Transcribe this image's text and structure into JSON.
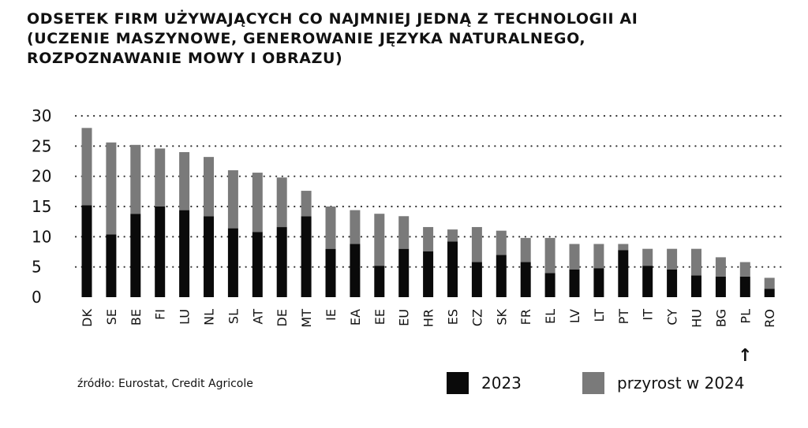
{
  "title_lines": [
    "ODSETEK FIRM UŻYWAJĄCYCH CO NAJMNIEJ JEDNĄ Z TECHNOLOGII AI",
    "(UCZENIE MASZYNOWE, GENEROWANIE JĘZYKA NATURALNEGO,",
    "ROZPOZNAWANIE MOWY I OBRAZU)"
  ],
  "source": "źródło: Eurostat, Credit Agricole",
  "colors": {
    "base": "#0a0a0a",
    "increase": "#7a7a7a",
    "grid": "#333333"
  },
  "highlight": {
    "category": "PL",
    "marker": "↑"
  },
  "chart_data": {
    "type": "bar",
    "stacked": true,
    "categories": [
      "DK",
      "SE",
      "BE",
      "FI",
      "LU",
      "NL",
      "SL",
      "AT",
      "DE",
      "MT",
      "IE",
      "EA",
      "EE",
      "EU",
      "HR",
      "ES",
      "CZ",
      "SK",
      "FR",
      "EL",
      "LV",
      "LT",
      "PT",
      "IT",
      "CY",
      "HU",
      "BG",
      "PL",
      "RO"
    ],
    "series": [
      {
        "name": "2023",
        "values": [
          15.2,
          10.4,
          13.8,
          15.0,
          14.4,
          13.4,
          11.4,
          10.8,
          11.6,
          13.4,
          8.0,
          8.8,
          5.2,
          8.0,
          7.6,
          9.2,
          5.8,
          7.0,
          5.8,
          4.0,
          4.6,
          4.8,
          7.8,
          5.2,
          4.6,
          3.6,
          3.4,
          3.4,
          1.4
        ]
      },
      {
        "name": "przyrost w 2024",
        "values": [
          12.8,
          15.2,
          11.4,
          9.6,
          9.6,
          9.8,
          9.6,
          9.8,
          8.2,
          4.2,
          7.0,
          5.6,
          8.6,
          5.4,
          4.0,
          2.0,
          5.8,
          4.0,
          4.0,
          5.8,
          4.2,
          4.0,
          1.0,
          2.8,
          3.4,
          4.4,
          3.2,
          2.4,
          1.8
        ]
      }
    ],
    "ylim": [
      0,
      30
    ],
    "yticks": [
      0,
      5,
      10,
      15,
      20,
      25,
      30
    ],
    "grid": true,
    "legend": "bottom-right"
  }
}
